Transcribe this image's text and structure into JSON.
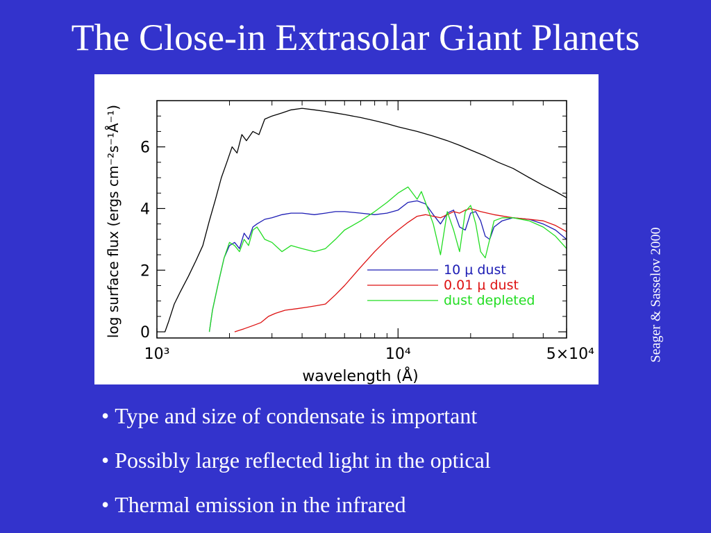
{
  "slide": {
    "title": "The Close-in Extrasolar Giant Planets",
    "credit": "Seager & Sasselov 2000",
    "bullets": [
      "Type and size of condensate is important",
      "Possibly large reflected light in the optical",
      "Thermal emission in the infrared"
    ]
  },
  "chart_data": {
    "type": "line",
    "title": "",
    "xlabel": "wavelength (Å)",
    "ylabel": "log surface flux (ergs cm⁻²s⁻¹Å⁻¹)",
    "xscale": "log",
    "xlim": [
      1000,
      50000
    ],
    "ylim": [
      -0.2,
      7.5
    ],
    "x_ticks": [
      {
        "value": 1000,
        "label": "10³"
      },
      {
        "value": 10000,
        "label": "10⁴"
      },
      {
        "value": 50000,
        "label": "5×10⁴"
      }
    ],
    "y_ticks": [
      0,
      2,
      4,
      6
    ],
    "grid": false,
    "legend_position": "lower-right",
    "series": [
      {
        "label": "",
        "color": "#000000",
        "x": [
          1080,
          1120,
          1180,
          1250,
          1350,
          1450,
          1550,
          1650,
          1750,
          1850,
          1950,
          2050,
          2150,
          2250,
          2350,
          2500,
          2650,
          2800,
          3000,
          3300,
          3600,
          4000,
          4500,
          5000,
          5500,
          6000,
          7000,
          8000,
          9000,
          10000,
          12000,
          14000,
          16000,
          18000,
          20000,
          23000,
          26000,
          30000,
          35000,
          40000,
          45000,
          50000
        ],
        "y": [
          0.0,
          0.35,
          0.9,
          1.3,
          1.8,
          2.3,
          2.8,
          3.6,
          4.3,
          5.0,
          5.5,
          6.0,
          5.8,
          6.4,
          6.2,
          6.5,
          6.4,
          6.9,
          7.0,
          7.1,
          7.2,
          7.25,
          7.2,
          7.15,
          7.1,
          7.05,
          6.95,
          6.85,
          6.75,
          6.65,
          6.5,
          6.35,
          6.2,
          6.05,
          5.9,
          5.7,
          5.5,
          5.3,
          5.0,
          4.75,
          4.55,
          4.35
        ]
      },
      {
        "label": "10 μ dust",
        "color": "#1c1cb4",
        "x": [
          1650,
          1700,
          1800,
          1900,
          2000,
          2100,
          2200,
          2300,
          2400,
          2500,
          2600,
          2800,
          3000,
          3300,
          3600,
          4000,
          4500,
          5000,
          5500,
          6000,
          7000,
          8000,
          9000,
          10000,
          11000,
          12000,
          13000,
          14000,
          15000,
          16000,
          17000,
          18000,
          19000,
          20000,
          21000,
          22000,
          23000,
          24000,
          25000,
          27000,
          30000,
          35000,
          40000,
          45000,
          50000
        ],
        "y": [
          0.0,
          0.7,
          1.6,
          2.4,
          2.8,
          2.9,
          2.7,
          3.2,
          3.0,
          3.4,
          3.5,
          3.65,
          3.7,
          3.8,
          3.85,
          3.85,
          3.8,
          3.85,
          3.9,
          3.9,
          3.85,
          3.8,
          3.85,
          3.95,
          4.2,
          4.25,
          4.15,
          3.8,
          3.5,
          3.85,
          3.95,
          3.4,
          3.3,
          3.85,
          3.9,
          3.6,
          3.1,
          3.0,
          3.4,
          3.6,
          3.7,
          3.65,
          3.5,
          3.3,
          3.0
        ]
      },
      {
        "label": "0.01 μ dust",
        "color": "#dd1111",
        "x": [
          2100,
          2300,
          2500,
          2700,
          2900,
          3100,
          3400,
          3800,
          4200,
          4600,
          5000,
          5500,
          6000,
          7000,
          8000,
          9000,
          10000,
          11000,
          12000,
          13000,
          14000,
          15000,
          16000,
          17000,
          18000,
          19000,
          20000,
          22000,
          25000,
          30000,
          35000,
          40000,
          45000,
          50000
        ],
        "y": [
          0.0,
          0.1,
          0.2,
          0.3,
          0.5,
          0.6,
          0.7,
          0.75,
          0.8,
          0.85,
          0.9,
          1.2,
          1.5,
          2.1,
          2.6,
          3.0,
          3.3,
          3.55,
          3.75,
          3.8,
          3.75,
          3.7,
          3.8,
          3.9,
          3.85,
          3.95,
          4.0,
          3.9,
          3.8,
          3.7,
          3.65,
          3.6,
          3.45,
          3.25
        ]
      },
      {
        "label": "dust depleted",
        "color": "#22dd22",
        "x": [
          1650,
          1700,
          1800,
          1900,
          2000,
          2100,
          2200,
          2300,
          2400,
          2500,
          2600,
          2700,
          2800,
          3000,
          3300,
          3600,
          4000,
          4500,
          5000,
          5500,
          6000,
          7000,
          8000,
          9000,
          10000,
          11000,
          12000,
          12500,
          13000,
          14000,
          15000,
          16000,
          17000,
          18000,
          19000,
          20000,
          21000,
          22000,
          23000,
          24000,
          25000,
          27000,
          30000,
          35000,
          40000,
          45000,
          50000
        ],
        "y": [
          0.0,
          0.7,
          1.6,
          2.4,
          2.9,
          2.8,
          2.6,
          3.0,
          2.8,
          3.3,
          3.4,
          3.2,
          3.0,
          2.9,
          2.6,
          2.8,
          2.7,
          2.6,
          2.7,
          3.0,
          3.3,
          3.6,
          3.9,
          4.2,
          4.5,
          4.7,
          4.3,
          4.55,
          4.2,
          3.5,
          2.5,
          3.9,
          3.3,
          2.6,
          3.9,
          4.1,
          3.5,
          2.6,
          2.4,
          3.0,
          3.6,
          3.7,
          3.7,
          3.6,
          3.4,
          3.1,
          2.7
        ]
      }
    ]
  }
}
